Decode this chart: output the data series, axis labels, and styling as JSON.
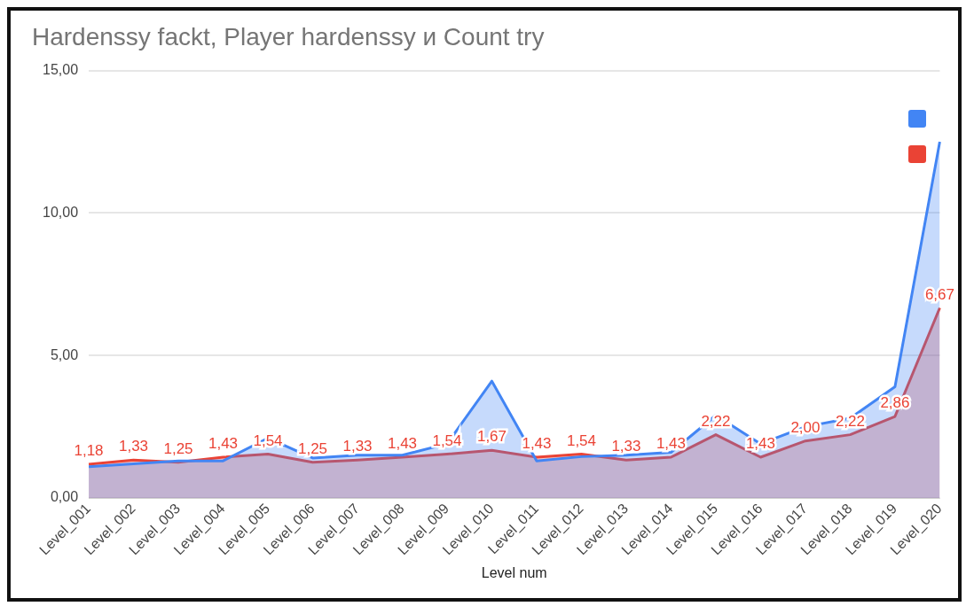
{
  "chart_data": {
    "type": "area",
    "title": "Hardenssy fackt, Player hardenssy и Count try",
    "xlabel": "Level num",
    "categories": [
      "Level_001",
      "Level_002",
      "Level_003",
      "Level_004",
      "Level_005",
      "Level_006",
      "Level_007",
      "Level_008",
      "Level_009",
      "Level_010",
      "Level_011",
      "Level_012",
      "Level_013",
      "Level_014",
      "Level_015",
      "Level_016",
      "Level_017",
      "Level_018",
      "Level_019",
      "Level_020"
    ],
    "series": [
      {
        "color": "#4285f4",
        "values": [
          1.1,
          1.2,
          1.3,
          1.3,
          2.1,
          1.4,
          1.5,
          1.5,
          1.9,
          4.1,
          1.3,
          1.45,
          1.5,
          1.6,
          2.9,
          1.9,
          2.5,
          2.8,
          3.9,
          12.5
        ]
      },
      {
        "color": "#ea4335",
        "values": [
          1.18,
          1.33,
          1.25,
          1.43,
          1.54,
          1.25,
          1.33,
          1.43,
          1.54,
          1.67,
          1.43,
          1.54,
          1.33,
          1.43,
          2.22,
          1.43,
          2.0,
          2.22,
          2.86,
          6.67
        ],
        "value_labels": [
          "1,18",
          "1,33",
          "1,25",
          "1,43",
          "1,54",
          "1,25",
          "1,33",
          "1,43",
          "1,54",
          "1,67",
          "1,43",
          "1,54",
          "1,33",
          "1,43",
          "2,22",
          "1,43",
          "2,00",
          "2,22",
          "2,86",
          "6,67"
        ]
      }
    ],
    "ylim": [
      0,
      15
    ],
    "yticks": [
      {
        "value": 0,
        "label": "0,00"
      },
      {
        "value": 5,
        "label": "5,00"
      },
      {
        "value": 10,
        "label": "10,00"
      },
      {
        "value": 15,
        "label": "15,00"
      }
    ],
    "grid": "y"
  }
}
